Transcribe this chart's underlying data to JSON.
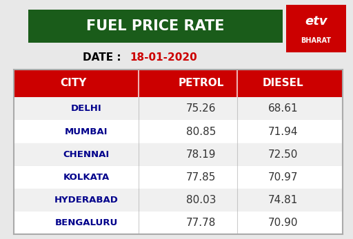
{
  "title": "FUEL PRICE RATE",
  "date_label": "DATE : ",
  "date_value": "18-01-2020",
  "columns": [
    "CITY",
    "PETROL",
    "DIESEL"
  ],
  "cities": [
    "DELHI",
    "MUMBAI",
    "CHENNAI",
    "KOLKATA",
    "HYDERABAD",
    "BENGALURU"
  ],
  "petrol": [
    75.26,
    80.85,
    78.19,
    77.85,
    80.03,
    77.78
  ],
  "diesel": [
    68.61,
    71.94,
    72.5,
    70.97,
    74.81,
    70.9
  ],
  "bg_color": "#e8e8e8",
  "title_bg": "#1a5c1a",
  "title_color": "#ffffff",
  "header_bg": "#cc0000",
  "header_color": "#ffffff",
  "city_color": "#00008b",
  "data_color": "#333333",
  "date_color": "#000000",
  "date_val_color": "#cc0000",
  "table_bg": "#f5f5f5",
  "border_color": "#aaaaaa",
  "row_alt_color": "#ffffff"
}
